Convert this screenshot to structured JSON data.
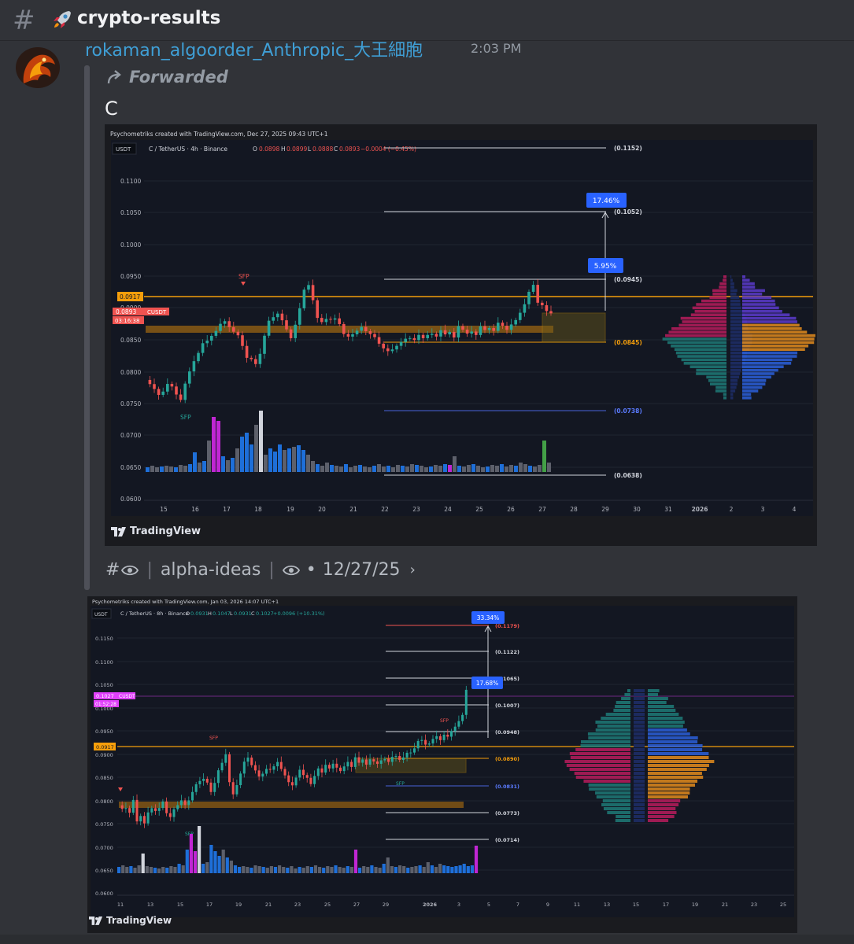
{
  "channel": {
    "name": "crypto-results",
    "hash_symbol": "#"
  },
  "message": {
    "author": "rokaman_algoorder_Anthropic_大王細胞",
    "timestamp": "2:03 PM",
    "forwarded_label": "Forwarded",
    "text": "C"
  },
  "chart1": {
    "header": "Psychometriks created with TradingView.com, Dec 27, 2025 09:43 UTC+1",
    "currency": "USDT",
    "symbol_line": "C / TetherUS · 4h · Binance",
    "ohlc": {
      "o_label": "O",
      "o": "0.0898",
      "h_label": "H",
      "h": "0.0899",
      "l_label": "L",
      "l": "0.0888",
      "c_label": "C",
      "c": "0.0893",
      "change": "−0.0004 (−0.45%)"
    },
    "price_ticks": [
      "0.1100",
      "0.1050",
      "0.1000",
      "0.0950",
      "0.0900",
      "0.0850",
      "0.0800",
      "0.0750",
      "0.0700",
      "0.0650",
      "0.0600"
    ],
    "date_ticks": [
      "15",
      "16",
      "17",
      "18",
      "19",
      "20",
      "21",
      "22",
      "23",
      "24",
      "25",
      "26",
      "27",
      "28",
      "29",
      "30",
      "31",
      "2026",
      "2",
      "3",
      "4"
    ],
    "level_labels": [
      "(0.1152)",
      "(0.1052)",
      "(0.0945)",
      "(0.0845)",
      "(0.0738)",
      "(0.0638)"
    ],
    "pct_badges": [
      "17.46%",
      "5.95%"
    ],
    "price_tag_orange": "0.0917",
    "price_tag_red": "0.0893",
    "price_tag_symbol": "CUSDT",
    "countdown": "03:16:38",
    "sfp_labels": [
      "SFP",
      "SFP"
    ],
    "brand": "TradingView"
  },
  "source": {
    "icon": "eye-icon",
    "channel": "alpha-ideas",
    "date": "12/27/25"
  },
  "chart2": {
    "header": "Psychometriks created with TradingView.com, Jan 03, 2026 14:07 UTC+1",
    "currency": "USDT",
    "symbol_line": "C / TetherUS · 8h · Binance",
    "ohlc": {
      "o_label": "O",
      "o": "0.0931",
      "h_label": "H",
      "h": "0.1047",
      "l_label": "L",
      "l": "0.0931",
      "c_label": "C",
      "c": "0.1027",
      "change": "+0.0096 (+10.31%)"
    },
    "price_ticks": [
      "0.1150",
      "0.1100",
      "0.1050",
      "0.1000",
      "0.0950",
      "0.0900",
      "0.0850",
      "0.0800",
      "0.0750",
      "0.0700",
      "0.0650",
      "0.0600"
    ],
    "date_ticks": [
      "11",
      "13",
      "15",
      "17",
      "19",
      "21",
      "23",
      "25",
      "27",
      "29",
      "2026",
      "3",
      "5",
      "7",
      "9",
      "11",
      "13",
      "15",
      "17",
      "19",
      "21",
      "23",
      "25"
    ],
    "level_labels": [
      "(0.1179)",
      "(0.1122)",
      "(0.1065)",
      "(0.1007)",
      "(0.0948)",
      "(0.0890)",
      "(0.0831)",
      "(0.0773)",
      "(0.0714)"
    ],
    "pct_badges": [
      "33.34%",
      "17.68%"
    ],
    "price_tag_magenta": "0.1027",
    "price_tag_symbol": "CUSDT",
    "countdown": "01:52:28",
    "price_tag_orange": "0.0917",
    "sfp_labels": [
      "SFP",
      "SFP",
      "SFP",
      "SFP"
    ],
    "brand": "TradingView"
  },
  "colors": {
    "bg": "#313338",
    "link": "#3f9fd6",
    "chart_bg": "#131722",
    "up": "#26a69a",
    "down": "#ef5350",
    "orange": "#f59e0b",
    "blue_badge": "#2962ff",
    "magenta": "#e040fb"
  }
}
